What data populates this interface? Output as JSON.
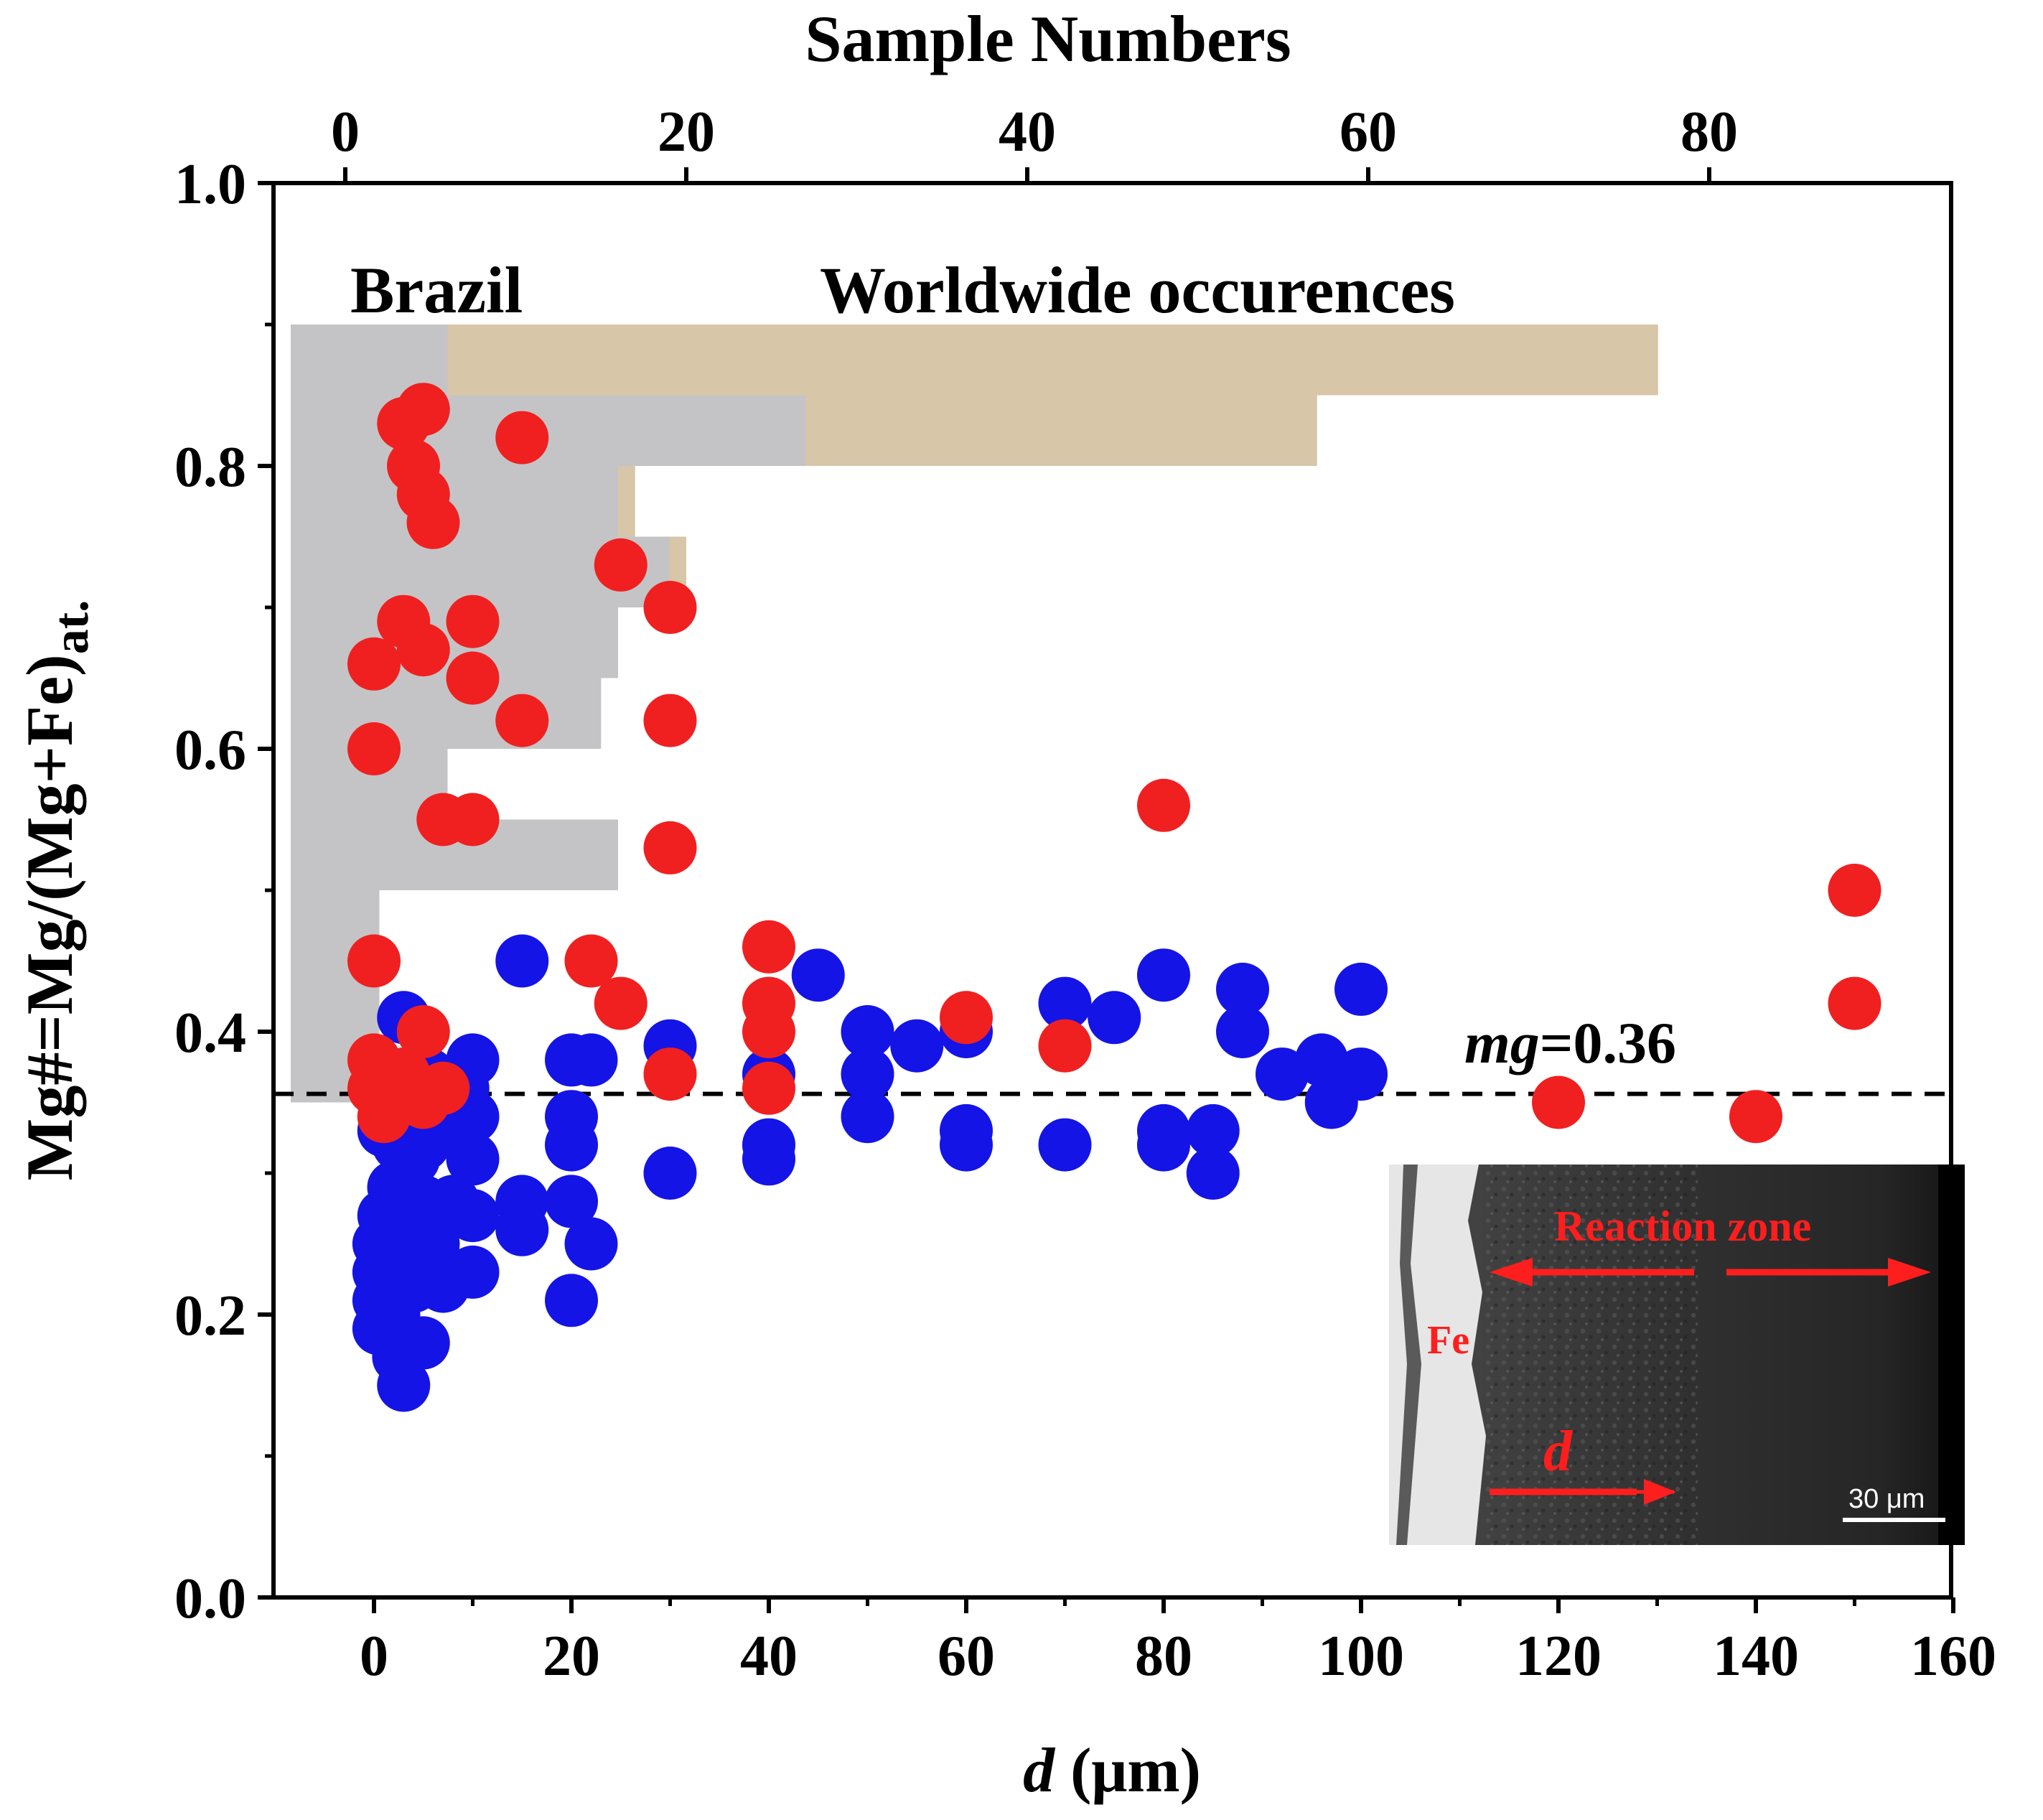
{
  "chart_data": {
    "type": "scatter",
    "title": "",
    "xlabel_main": "d",
    "xlabel_unit": " (μm)",
    "x_range": [
      -10,
      160
    ],
    "x_ticks": [
      0,
      20,
      40,
      60,
      80,
      100,
      120,
      140,
      160
    ],
    "ylabel_main": "Mg#=Mg/(Mg+Fe)",
    "ylabel_sub": "at.",
    "y_range": [
      0,
      1.0
    ],
    "y_ticks": [
      0.0,
      0.2,
      0.4,
      0.6,
      0.8,
      1.0
    ],
    "y_tick_labels": [
      "0.0",
      "0.2",
      "0.4",
      "0.6",
      "0.8",
      "1.0"
    ],
    "top_xlabel": "Sample Numbers",
    "top_x_range": [
      -3.2,
      95.0
    ],
    "top_x_ticks": [
      0,
      20,
      40,
      60,
      80
    ],
    "grid": false,
    "reference_line": {
      "y": 0.356,
      "label_italic": "mg",
      "label_rest": "=0.36",
      "style": "dashed"
    },
    "histogram_bin_width": 0.05,
    "histograms": [
      {
        "label": "Worldwide occurences",
        "color": "#d8c6a8",
        "text_color": "#bfa777",
        "bins": [
          {
            "y0": 0.85,
            "y1": 0.9,
            "count": 77
          },
          {
            "y0": 0.8,
            "y1": 0.85,
            "count": 57
          },
          {
            "y0": 0.75,
            "y1": 0.8,
            "count": 17
          },
          {
            "y0": 0.7,
            "y1": 0.75,
            "count": 20
          },
          {
            "y0": 0.65,
            "y1": 0.7,
            "count": 16
          },
          {
            "y0": 0.6,
            "y1": 0.65,
            "count": 15
          },
          {
            "y0": 0.55,
            "y1": 0.6,
            "count": 6
          },
          {
            "y0": 0.5,
            "y1": 0.55,
            "count": 16
          },
          {
            "y0": 0.45,
            "y1": 0.5,
            "count": 2
          },
          {
            "y0": 0.4,
            "y1": 0.45,
            "count": 2
          },
          {
            "y0": 0.35,
            "y1": 0.4,
            "count": 2
          }
        ]
      },
      {
        "label": "Brazil",
        "color": "#c4c4c6",
        "text_color": "#a2a2a6",
        "bins": [
          {
            "y0": 0.85,
            "y1": 0.9,
            "count": 6
          },
          {
            "y0": 0.8,
            "y1": 0.85,
            "count": 27
          },
          {
            "y0": 0.75,
            "y1": 0.8,
            "count": 16
          },
          {
            "y0": 0.7,
            "y1": 0.75,
            "count": 19
          },
          {
            "y0": 0.65,
            "y1": 0.7,
            "count": 16
          },
          {
            "y0": 0.6,
            "y1": 0.65,
            "count": 15
          },
          {
            "y0": 0.55,
            "y1": 0.6,
            "count": 6
          },
          {
            "y0": 0.5,
            "y1": 0.55,
            "count": 16
          },
          {
            "y0": 0.45,
            "y1": 0.5,
            "count": 2
          },
          {
            "y0": 0.4,
            "y1": 0.45,
            "count": 2
          },
          {
            "y0": 0.35,
            "y1": 0.4,
            "count": 2
          }
        ]
      }
    ],
    "series": [
      {
        "color": "#1414e6",
        "points": [
          [
            0.5,
            0.19
          ],
          [
            0.5,
            0.21
          ],
          [
            0.5,
            0.23
          ],
          [
            0.5,
            0.25
          ],
          [
            1,
            0.33
          ],
          [
            1,
            0.27
          ],
          [
            1.5,
            0.22
          ],
          [
            1.5,
            0.26
          ],
          [
            2,
            0.29
          ],
          [
            2,
            0.24
          ],
          [
            2,
            0.2
          ],
          [
            2.5,
            0.17
          ],
          [
            2.5,
            0.32
          ],
          [
            3,
            0.41
          ],
          [
            3,
            0.35
          ],
          [
            3,
            0.15
          ],
          [
            3.5,
            0.27
          ],
          [
            3.5,
            0.25
          ],
          [
            4,
            0.31
          ],
          [
            4,
            0.22
          ],
          [
            5,
            0.28
          ],
          [
            5,
            0.18
          ],
          [
            5,
            0.32
          ],
          [
            5.5,
            0.37
          ],
          [
            6,
            0.33
          ],
          [
            6,
            0.25
          ],
          [
            7,
            0.22
          ],
          [
            8,
            0.28
          ],
          [
            9,
            0.36
          ],
          [
            10,
            0.38
          ],
          [
            10,
            0.34
          ],
          [
            10,
            0.31
          ],
          [
            10,
            0.27
          ],
          [
            10,
            0.23
          ],
          [
            15,
            0.45
          ],
          [
            15,
            0.28
          ],
          [
            15,
            0.26
          ],
          [
            20,
            0.38
          ],
          [
            20,
            0.34
          ],
          [
            20,
            0.32
          ],
          [
            20,
            0.28
          ],
          [
            20,
            0.21
          ],
          [
            22,
            0.38
          ],
          [
            22,
            0.25
          ],
          [
            30,
            0.39
          ],
          [
            30,
            0.3
          ],
          [
            40,
            0.37
          ],
          [
            40,
            0.32
          ],
          [
            40,
            0.31
          ],
          [
            45,
            0.44
          ],
          [
            50,
            0.4
          ],
          [
            50,
            0.37
          ],
          [
            50,
            0.34
          ],
          [
            55,
            0.39
          ],
          [
            60,
            0.4
          ],
          [
            60,
            0.33
          ],
          [
            60,
            0.32
          ],
          [
            70,
            0.42
          ],
          [
            70,
            0.32
          ],
          [
            75,
            0.41
          ],
          [
            80,
            0.44
          ],
          [
            80,
            0.33
          ],
          [
            80,
            0.32
          ],
          [
            85,
            0.33
          ],
          [
            85,
            0.3
          ],
          [
            88,
            0.43
          ],
          [
            88,
            0.4
          ],
          [
            92,
            0.37
          ],
          [
            96,
            0.38
          ],
          [
            97,
            0.35
          ],
          [
            100,
            0.43
          ],
          [
            100,
            0.37
          ]
        ]
      },
      {
        "color": "#f02020",
        "points": [
          [
            0,
            0.45
          ],
          [
            0,
            0.66
          ],
          [
            0,
            0.6
          ],
          [
            0,
            0.38
          ],
          [
            0,
            0.36
          ],
          [
            1,
            0.34
          ],
          [
            2,
            0.35
          ],
          [
            3,
            0.83
          ],
          [
            3,
            0.69
          ],
          [
            3,
            0.37
          ],
          [
            4,
            0.8
          ],
          [
            4,
            0.36
          ],
          [
            5,
            0.84
          ],
          [
            5,
            0.78
          ],
          [
            5,
            0.67
          ],
          [
            5,
            0.4
          ],
          [
            5,
            0.35
          ],
          [
            6,
            0.76
          ],
          [
            7,
            0.55
          ],
          [
            7,
            0.36
          ],
          [
            10,
            0.69
          ],
          [
            10,
            0.65
          ],
          [
            10,
            0.55
          ],
          [
            15,
            0.82
          ],
          [
            15,
            0.62
          ],
          [
            22,
            0.45
          ],
          [
            25,
            0.73
          ],
          [
            25,
            0.42
          ],
          [
            30,
            0.7
          ],
          [
            30,
            0.62
          ],
          [
            30,
            0.53
          ],
          [
            30,
            0.37
          ],
          [
            40,
            0.46
          ],
          [
            40,
            0.42
          ],
          [
            40,
            0.4
          ],
          [
            40,
            0.36
          ],
          [
            60,
            0.41
          ],
          [
            70,
            0.39
          ],
          [
            80,
            0.56
          ],
          [
            120,
            0.35
          ],
          [
            140,
            0.34
          ],
          [
            150,
            0.5
          ],
          [
            150,
            0.42
          ]
        ]
      }
    ],
    "inset": {
      "labels": {
        "reaction_zone": "Reaction zone",
        "fe": "Fe",
        "d": "d",
        "scale_bar": "30 μm"
      }
    }
  }
}
